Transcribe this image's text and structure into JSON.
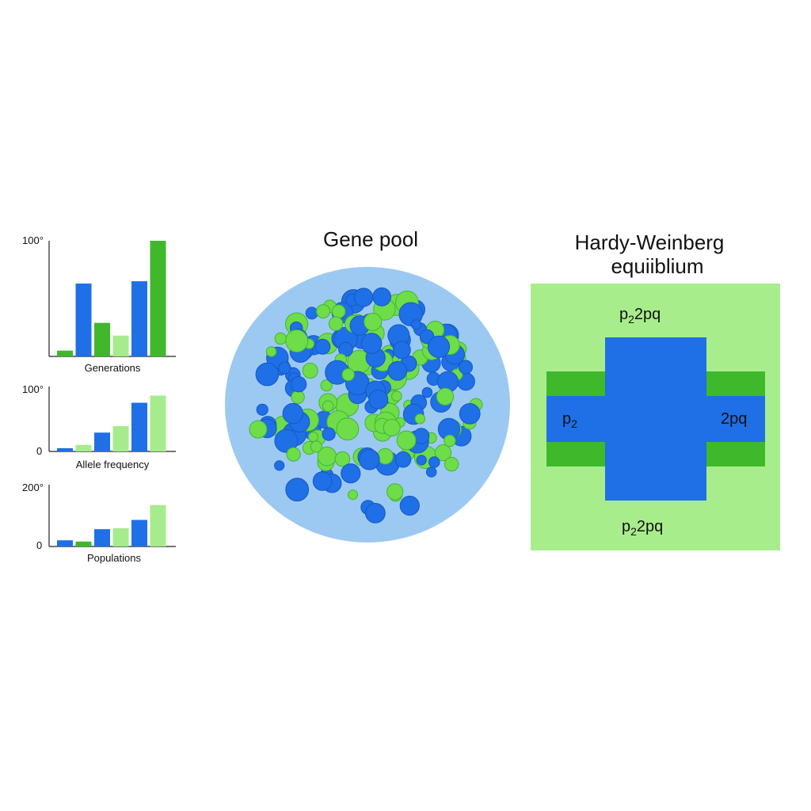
{
  "colors": {
    "blue": "#1f6fe6",
    "green": "#3fb82c",
    "light_green": "#a6ec8c",
    "pool_bg": "#9cc9f2",
    "square_bg": "#a8ed8c"
  },
  "chart_data": [
    {
      "type": "bar",
      "xlabel": "Generations",
      "y_max_label": "100°",
      "y_min_label": "",
      "ylim": [
        0,
        100
      ],
      "bars": [
        {
          "value": 5,
          "color": "green"
        },
        {
          "value": 63,
          "color": "blue"
        },
        {
          "value": 29,
          "color": "green"
        },
        {
          "value": 18,
          "color": "light_green"
        },
        {
          "value": 65,
          "color": "blue"
        },
        {
          "value": 100,
          "color": "green"
        }
      ]
    },
    {
      "type": "bar",
      "xlabel": "Allele frequency",
      "y_max_label": "100°",
      "y_min_label": "0",
      "ylim": [
        0,
        100
      ],
      "bars": [
        {
          "value": 5,
          "color": "blue"
        },
        {
          "value": 10,
          "color": "light_green"
        },
        {
          "value": 29,
          "color": "blue"
        },
        {
          "value": 39,
          "color": "light_green"
        },
        {
          "value": 75,
          "color": "blue"
        },
        {
          "value": 86,
          "color": "light_green"
        }
      ]
    },
    {
      "type": "bar",
      "xlabel": "Populations",
      "y_max_label": "200°",
      "y_min_label": "0",
      "ylim": [
        0,
        200
      ],
      "bars": [
        {
          "value": 20,
          "color": "blue"
        },
        {
          "value": 16,
          "color": "green"
        },
        {
          "value": 56,
          "color": "blue"
        },
        {
          "value": 59,
          "color": "light_green"
        },
        {
          "value": 86,
          "color": "blue"
        },
        {
          "value": 134,
          "color": "light_green"
        }
      ]
    }
  ],
  "gene_pool": {
    "title": "Gene pool"
  },
  "hardy_weinberg": {
    "title_line1": "Hardy-Weinberg",
    "title_line2": "equiiblium",
    "top_label_p": "p",
    "top_label_sub": "2",
    "top_label_rest": "2pq",
    "left_label_p": "p",
    "left_label_sub": "2",
    "right_label": "2pq",
    "bottom_label_p": "p",
    "bottom_label_sub": "2",
    "bottom_label_rest": "2pq"
  }
}
